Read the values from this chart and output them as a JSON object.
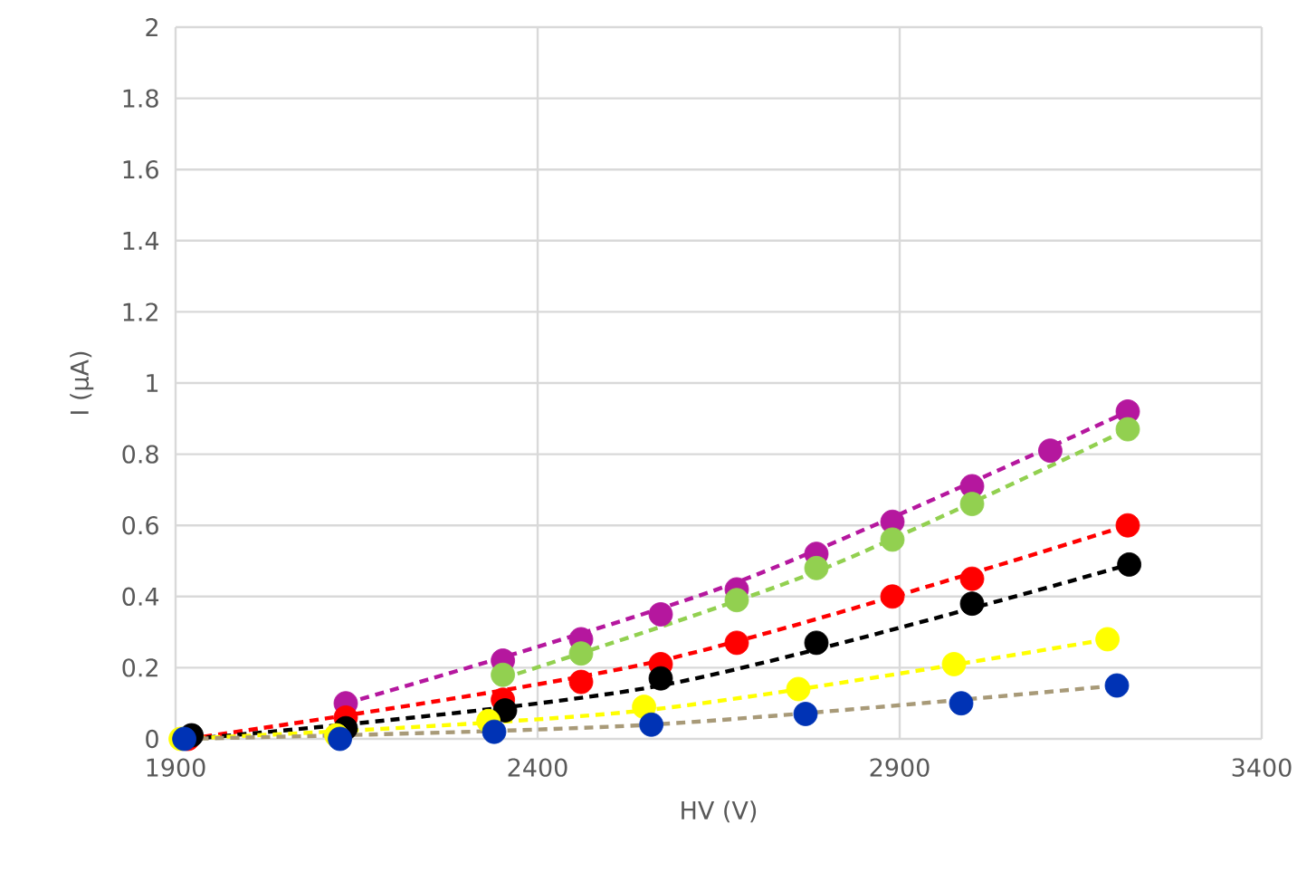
{
  "chart_data": {
    "type": "scatter",
    "xlabel": "HV (V)",
    "ylabel": "I (µA)",
    "xlim": [
      1900,
      3400
    ],
    "ylim": [
      0,
      2
    ],
    "xticks": [
      1900,
      2400,
      2900,
      3400
    ],
    "yticks": [
      0,
      0.2,
      0.4,
      0.6,
      0.8,
      1,
      1.2,
      1.4,
      1.6,
      1.8,
      2
    ],
    "grid": true,
    "line_style": "dashed",
    "series": [
      {
        "marker": "circle",
        "color": "#b5179e",
        "x": [
          2135,
          2352,
          2460,
          2570,
          2675,
          2785,
          2890,
          3000,
          3108,
          3215
        ],
        "values": [
          0.1,
          0.22,
          0.28,
          0.35,
          0.42,
          0.52,
          0.61,
          0.71,
          0.81,
          0.92
        ]
      },
      {
        "marker": "circle",
        "color": "#92d050",
        "x": [
          2352,
          2460,
          2675,
          2785,
          2890,
          3000,
          3215
        ],
        "values": [
          0.18,
          0.24,
          0.39,
          0.48,
          0.56,
          0.66,
          0.87
        ]
      },
      {
        "marker": "circle",
        "color": "#ff0000",
        "x": [
          1917,
          2135,
          2352,
          2460,
          2570,
          2675,
          2890,
          3000,
          3215
        ],
        "values": [
          0,
          0.06,
          0.11,
          0.16,
          0.21,
          0.27,
          0.4,
          0.45,
          0.6
        ]
      },
      {
        "marker": "circle",
        "color": "#000000",
        "x": [
          1922,
          2135,
          2355,
          2570,
          2785,
          3000,
          3217
        ],
        "values": [
          0.01,
          0.03,
          0.08,
          0.17,
          0.27,
          0.38,
          0.49
        ]
      },
      {
        "marker": "circle",
        "color": "#ffff00",
        "x": [
          1907,
          2122,
          2332,
          2547,
          2760,
          2975,
          3187
        ],
        "values": [
          0,
          0.01,
          0.05,
          0.09,
          0.14,
          0.21,
          0.28
        ]
      },
      {
        "marker": "circle",
        "color": "#0033b5",
        "x": [
          1912,
          2127,
          2340,
          2557,
          2770,
          2985,
          3200
        ],
        "values": [
          0,
          0,
          0.02,
          0.04,
          0.07,
          0.1,
          0.15
        ]
      },
      {
        "type": "line",
        "marker": "none",
        "color": "#b5179e",
        "x": [
          2135,
          2675,
          3215
        ],
        "values": [
          0.1,
          0.44,
          0.92
        ]
      },
      {
        "type": "line",
        "marker": "none",
        "color": "#92d050",
        "x": [
          2352,
          2785,
          3215
        ],
        "values": [
          0.17,
          0.47,
          0.87
        ]
      },
      {
        "type": "line",
        "marker": "none",
        "color": "#ff0000",
        "x": [
          1917,
          2570,
          3215
        ],
        "values": [
          0,
          0.22,
          0.6
        ]
      },
      {
        "type": "line",
        "marker": "none",
        "color": "#000000",
        "x": [
          1922,
          2570,
          3217
        ],
        "values": [
          0,
          0.15,
          0.49
        ]
      },
      {
        "type": "line",
        "marker": "none",
        "color": "#ffff00",
        "x": [
          1907,
          2547,
          3187
        ],
        "values": [
          0,
          0.08,
          0.28
        ]
      },
      {
        "type": "line",
        "marker": "none",
        "color": "#a89a78",
        "x": [
          1912,
          2557,
          3200
        ],
        "values": [
          0,
          0.04,
          0.15
        ]
      }
    ]
  }
}
